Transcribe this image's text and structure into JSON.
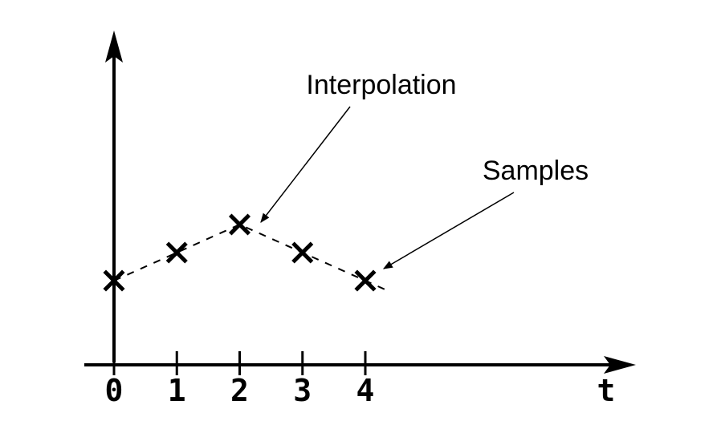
{
  "diagram": {
    "x_axis_label": "t",
    "ticks": [
      "0",
      "1",
      "2",
      "3",
      "4"
    ],
    "callouts": {
      "interpolation": "Interpolation",
      "samples": "Samples"
    },
    "sample_marker": "x"
  },
  "chart_data": {
    "type": "scatter",
    "x": [
      0,
      1,
      2,
      3,
      4
    ],
    "y": [
      1.5,
      2.0,
      2.5,
      2.0,
      1.5
    ],
    "xlabel": "t",
    "ylabel": "",
    "xlim": [
      -0.4,
      8.4
    ],
    "ylim": [
      0,
      6
    ],
    "interpolation": "dashed",
    "grid": false
  }
}
